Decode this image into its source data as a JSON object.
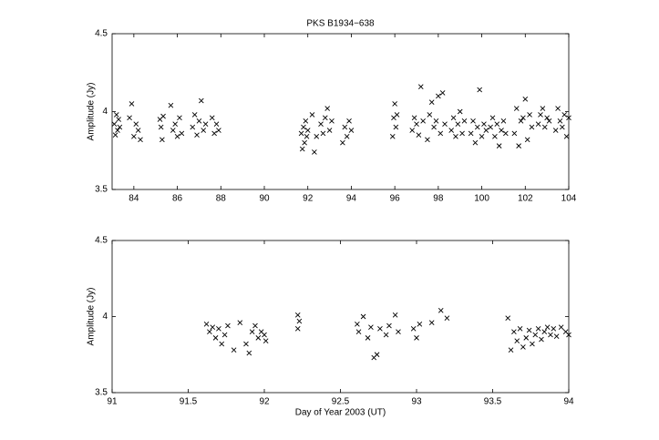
{
  "chart_data": [
    {
      "type": "scatter",
      "title": "PKS B1934−638",
      "y_label": "Amplitude (Jy)",
      "color": "#000000",
      "marker": "x",
      "xlim": [
        83,
        104
      ],
      "xticks": [
        84,
        86,
        88,
        90,
        92,
        94,
        96,
        98,
        100,
        102,
        104
      ],
      "ylim": [
        3.5,
        4.5
      ],
      "yticks": [
        3.5,
        4,
        4.5
      ],
      "x": [
        83.1,
        83.15,
        83.2,
        83.25,
        83.3,
        83.35,
        83.8,
        83.9,
        84.0,
        84.1,
        84.2,
        84.3,
        85.2,
        85.25,
        85.3,
        85.35,
        85.7,
        85.8,
        85.9,
        86.0,
        86.1,
        86.2,
        86.7,
        86.8,
        86.9,
        87.0,
        87.1,
        87.2,
        87.3,
        87.6,
        87.7,
        87.8,
        87.9,
        91.7,
        91.75,
        91.8,
        91.85,
        91.9,
        91.95,
        92.0,
        92.2,
        92.3,
        92.4,
        92.6,
        92.7,
        92.8,
        92.9,
        93.0,
        93.1,
        93.6,
        93.7,
        93.8,
        93.9,
        94.0,
        95.9,
        95.95,
        96.0,
        96.05,
        96.1,
        96.8,
        96.9,
        97.0,
        97.1,
        97.2,
        97.3,
        97.5,
        97.6,
        97.7,
        97.8,
        97.9,
        98.0,
        98.1,
        98.2,
        98.3,
        98.6,
        98.7,
        98.8,
        98.9,
        99.0,
        99.1,
        99.2,
        99.5,
        99.6,
        99.7,
        99.8,
        99.9,
        100.0,
        100.1,
        100.2,
        100.4,
        100.5,
        100.6,
        100.7,
        100.8,
        100.9,
        101.0,
        101.1,
        101.5,
        101.6,
        101.7,
        101.8,
        101.9,
        102.0,
        102.1,
        102.2,
        102.3,
        102.6,
        102.7,
        102.8,
        102.9,
        103.0,
        103.1,
        103.4,
        103.5,
        103.6,
        103.7,
        103.8,
        103.9,
        104.0
      ],
      "y": [
        3.92,
        3.85,
        3.98,
        3.88,
        3.95,
        3.9,
        3.96,
        4.05,
        3.84,
        3.92,
        3.88,
        3.82,
        3.95,
        3.9,
        3.82,
        3.97,
        4.04,
        3.88,
        3.92,
        3.84,
        3.96,
        3.86,
        3.9,
        3.98,
        3.85,
        3.94,
        4.07,
        3.88,
        3.92,
        3.96,
        3.86,
        3.92,
        3.88,
        3.86,
        3.76,
        3.9,
        3.8,
        3.94,
        3.84,
        3.88,
        3.98,
        3.74,
        3.84,
        3.92,
        3.86,
        3.96,
        4.02,
        3.88,
        3.94,
        3.8,
        3.9,
        3.84,
        3.94,
        3.88,
        3.84,
        3.96,
        4.05,
        3.9,
        3.98,
        3.88,
        3.96,
        3.92,
        3.85,
        4.16,
        3.94,
        3.82,
        3.98,
        4.06,
        3.9,
        3.94,
        4.1,
        3.86,
        4.12,
        3.92,
        3.88,
        3.96,
        3.84,
        3.92,
        4.0,
        3.86,
        3.94,
        3.86,
        3.94,
        3.8,
        3.9,
        4.14,
        3.84,
        3.92,
        3.88,
        3.9,
        3.96,
        3.84,
        3.92,
        3.78,
        3.88,
        3.94,
        3.86,
        3.86,
        4.02,
        3.78,
        3.94,
        3.96,
        4.08,
        3.82,
        3.98,
        3.9,
        3.92,
        3.98,
        4.02,
        3.9,
        3.96,
        3.94,
        3.88,
        4.02,
        3.94,
        3.9,
        3.98,
        3.84,
        3.96
      ]
    },
    {
      "type": "scatter",
      "x_label": "Day of Year 2003 (UT)",
      "y_label": "Amplitude (Jy)",
      "color": "#000000",
      "marker": "x",
      "xlim": [
        91,
        94
      ],
      "xticks": [
        91,
        91.5,
        92,
        92.5,
        93,
        93.5,
        94
      ],
      "ylim": [
        3.5,
        4.5
      ],
      "yticks": [
        3.5,
        4,
        4.5
      ],
      "x": [
        91.62,
        91.64,
        91.66,
        91.68,
        91.7,
        91.72,
        91.74,
        91.76,
        91.8,
        91.84,
        91.88,
        91.9,
        91.92,
        91.94,
        91.96,
        91.98,
        92.0,
        92.01,
        92.22,
        92.23,
        92.22,
        92.61,
        92.62,
        92.65,
        92.68,
        92.7,
        92.72,
        92.74,
        92.76,
        92.8,
        92.82,
        92.86,
        92.88,
        92.98,
        93.0,
        93.02,
        93.1,
        93.16,
        93.2,
        93.6,
        93.62,
        93.64,
        93.66,
        93.68,
        93.7,
        93.72,
        93.74,
        93.76,
        93.78,
        93.8,
        93.82,
        93.84,
        93.86,
        93.88,
        93.9,
        93.92,
        93.95,
        93.98,
        94.0
      ],
      "y": [
        3.95,
        3.9,
        3.93,
        3.86,
        3.92,
        3.82,
        3.88,
        3.94,
        3.78,
        3.96,
        3.82,
        3.76,
        3.9,
        3.94,
        3.86,
        3.9,
        3.88,
        3.84,
        4.01,
        3.97,
        3.92,
        3.95,
        3.9,
        4.0,
        3.86,
        3.93,
        3.73,
        3.75,
        3.92,
        3.88,
        3.94,
        4.01,
        3.9,
        3.92,
        3.86,
        3.95,
        3.96,
        4.04,
        3.99,
        3.99,
        3.78,
        3.9,
        3.84,
        3.92,
        3.8,
        3.86,
        3.91,
        3.82,
        3.88,
        3.92,
        3.85,
        3.9,
        3.93,
        3.88,
        3.92,
        3.87,
        3.93,
        3.9,
        3.88
      ]
    }
  ]
}
